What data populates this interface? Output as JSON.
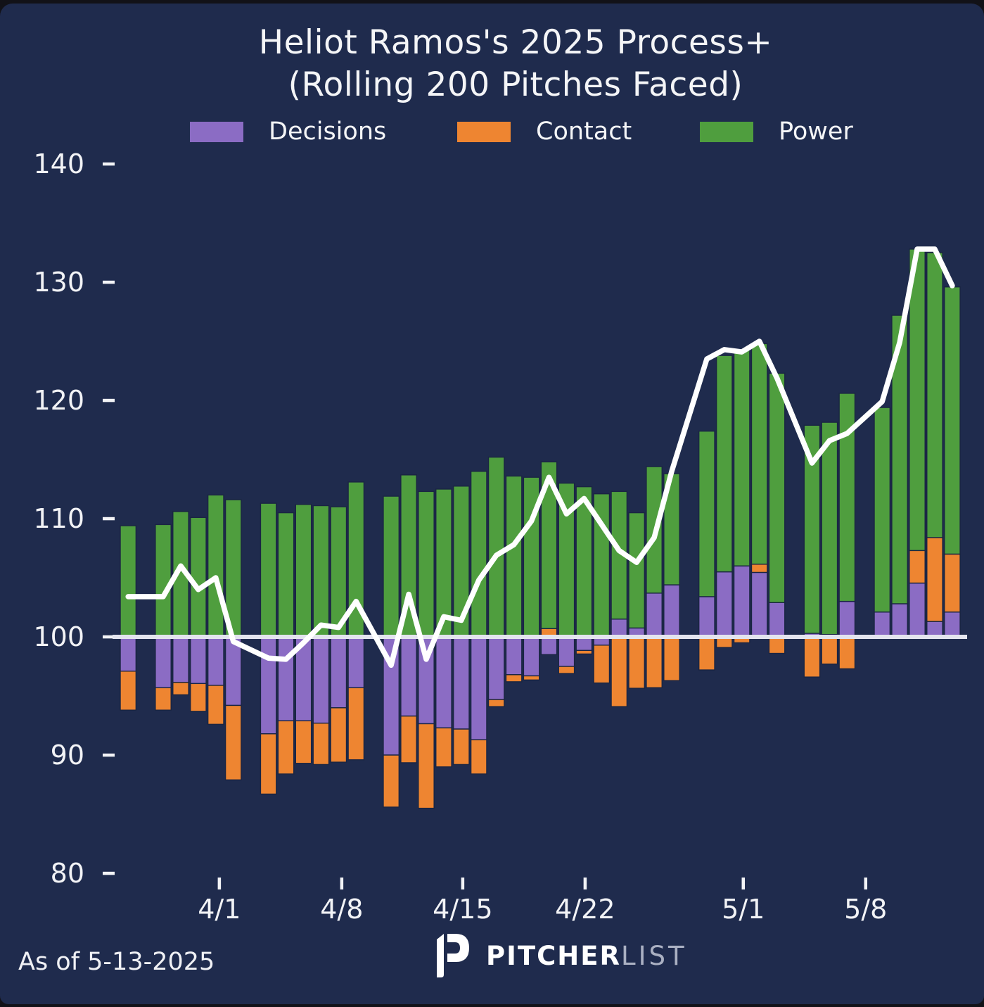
{
  "title": {
    "line1": "Heliot Ramos's 2025 Process+",
    "line2": "(Rolling 200 Pitches Faced)"
  },
  "legend": [
    {
      "label": "Decisions",
      "color": "#8b6cc4"
    },
    {
      "label": "Contact",
      "color": "#ee8531"
    },
    {
      "label": "Power",
      "color": "#4f9e3e"
    }
  ],
  "footer": {
    "as_of": "As of 5-13-2025",
    "brand_bold": "PITCHER",
    "brand_light": "LIST"
  },
  "colors": {
    "background": "#1f2b4d",
    "page": "#121218",
    "bar_outline": "#1a2542",
    "baseline_line": "#e3e4ee",
    "trend_line": "#ffffff",
    "tick_text": "#f2f3f6",
    "decisions": "#8b6cc4",
    "contact": "#ee8531",
    "power": "#4f9e3e"
  },
  "chart_data": {
    "type": "bar",
    "subtype": "stacked-deviation-bars-with-line",
    "baseline": 100,
    "ylim": [
      78,
      142
    ],
    "yticks": [
      80,
      90,
      100,
      110,
      120,
      130,
      140
    ],
    "xticks": [
      {
        "label": "4/1",
        "slot": 5.2
      },
      {
        "label": "4/8",
        "slot": 12.18
      },
      {
        "label": "4/15",
        "slot": 19.08
      },
      {
        "label": "4/22",
        "slot": 26.06
      },
      {
        "label": "5/1",
        "slot": 35.08
      },
      {
        "label": "5/8",
        "slot": 42.06
      }
    ],
    "series_names": {
      "stacks": [
        "Decisions",
        "Contact",
        "Power"
      ],
      "line": "Process+"
    },
    "bars": [
      {
        "slot": 0,
        "decisions": -2.9,
        "contact": -3.3,
        "power": 9.4,
        "process": 103.4
      },
      {
        "slot": 2,
        "decisions": -4.3,
        "contact": -1.9,
        "power": 9.5,
        "process": 103.4
      },
      {
        "slot": 3,
        "decisions": -3.85,
        "contact": -1.05,
        "power": 10.6,
        "process": 106.0
      },
      {
        "slot": 4,
        "decisions": -3.95,
        "contact": -2.35,
        "power": 10.1,
        "process": 104.0
      },
      {
        "slot": 5,
        "decisions": -4.1,
        "contact": -3.3,
        "power": 12.0,
        "process": 105.0
      },
      {
        "slot": 6,
        "decisions": -5.8,
        "contact": -6.3,
        "power": 11.6,
        "process": 99.6
      },
      {
        "slot": 8,
        "decisions": -8.2,
        "contact": -5.1,
        "power": 11.3,
        "process": 98.2
      },
      {
        "slot": 9,
        "decisions": -7.1,
        "contact": -4.5,
        "power": 10.5,
        "process": 98.1
      },
      {
        "slot": 10,
        "decisions": -7.1,
        "contact": -3.6,
        "power": 11.2,
        "process": 99.5
      },
      {
        "slot": 11,
        "decisions": -7.3,
        "contact": -3.5,
        "power": 11.1,
        "process": 101.0
      },
      {
        "slot": 12,
        "decisions": -6.0,
        "contact": -4.6,
        "power": 11.0,
        "process": 100.8
      },
      {
        "slot": 13,
        "decisions": -4.3,
        "contact": -6.1,
        "power": 13.1,
        "process": 103.0
      },
      {
        "slot": 15,
        "decisions": -10.0,
        "contact": -4.4,
        "power": 11.9,
        "process": 97.6
      },
      {
        "slot": 16,
        "decisions": -6.7,
        "contact": -3.95,
        "power": 13.7,
        "process": 103.6
      },
      {
        "slot": 17,
        "decisions": -7.35,
        "contact": -7.15,
        "power": 12.3,
        "process": 98.1
      },
      {
        "slot": 18,
        "decisions": -7.7,
        "contact": -3.3,
        "power": 12.5,
        "process": 101.7
      },
      {
        "slot": 19,
        "decisions": -7.8,
        "contact": -3.0,
        "power": 12.75,
        "process": 101.4
      },
      {
        "slot": 20,
        "decisions": -8.7,
        "contact": -2.9,
        "power": 14.0,
        "process": 104.8
      },
      {
        "slot": 21,
        "decisions": -5.3,
        "contact": -0.6,
        "power": 15.2,
        "process": 106.9
      },
      {
        "slot": 22,
        "decisions": -3.2,
        "contact": -0.6,
        "power": 13.6,
        "process": 107.8
      },
      {
        "slot": 23,
        "decisions": -3.3,
        "contact": -0.35,
        "power": 13.5,
        "process": 109.8
      },
      {
        "slot": 24,
        "decisions": -1.5,
        "contact": 0.7,
        "power": 14.1,
        "process": 113.5
      },
      {
        "slot": 25,
        "decisions": -2.5,
        "contact": -0.6,
        "power": 13.0,
        "process": 110.4
      },
      {
        "slot": 26,
        "decisions": -1.15,
        "contact": -0.3,
        "power": 12.7,
        "process": 111.7
      },
      {
        "slot": 27,
        "decisions": -0.7,
        "contact": -3.2,
        "power": 12.1,
        "process": 109.5
      },
      {
        "slot": 28,
        "decisions": 1.5,
        "contact": -5.9,
        "power": 10.8,
        "process": 107.3
      },
      {
        "slot": 29,
        "decisions": 0.75,
        "contact": -4.35,
        "power": 9.75,
        "process": 106.3
      },
      {
        "slot": 30,
        "decisions": 3.7,
        "contact": -4.3,
        "power": 10.7,
        "process": 108.4
      },
      {
        "slot": 31,
        "decisions": 4.4,
        "contact": -3.7,
        "power": 9.4,
        "process": 114.0
      },
      {
        "slot": 33,
        "decisions": 3.4,
        "contact": -2.8,
        "power": 14.0,
        "process": 123.5
      },
      {
        "slot": 34,
        "decisions": 5.5,
        "contact": -0.9,
        "power": 18.3,
        "process": 124.3
      },
      {
        "slot": 35,
        "decisions": 6.0,
        "contact": -0.5,
        "power": 18.3,
        "process": 124.1
      },
      {
        "slot": 36,
        "decisions": 5.45,
        "contact": 0.7,
        "power": 18.65,
        "process": 125.0
      },
      {
        "slot": 37,
        "decisions": 2.9,
        "contact": -1.4,
        "power": 19.4,
        "process": 121.9
      },
      {
        "slot": 39,
        "decisions": 0.3,
        "contact": -3.4,
        "power": 17.6,
        "process": 114.7
      },
      {
        "slot": 40,
        "decisions": 0.2,
        "contact": -2.3,
        "power": 17.95,
        "process": 116.6
      },
      {
        "slot": 41,
        "decisions": 3.0,
        "contact": -2.7,
        "power": 17.6,
        "process": 117.2
      },
      {
        "slot": 43,
        "decisions": 2.1,
        "contact": 0.0,
        "power": 17.3,
        "process": 119.9
      },
      {
        "slot": 44,
        "decisions": 2.8,
        "contact": 0.0,
        "power": 24.4,
        "process": 124.9
      },
      {
        "slot": 45,
        "decisions": 4.55,
        "contact": 2.75,
        "power": 25.5,
        "process": 132.8
      },
      {
        "slot": 46,
        "decisions": 1.3,
        "contact": 7.1,
        "power": 24.1,
        "process": 132.8
      },
      {
        "slot": 47,
        "decisions": 2.1,
        "contact": 4.9,
        "power": 22.6,
        "process": 129.7
      }
    ]
  }
}
